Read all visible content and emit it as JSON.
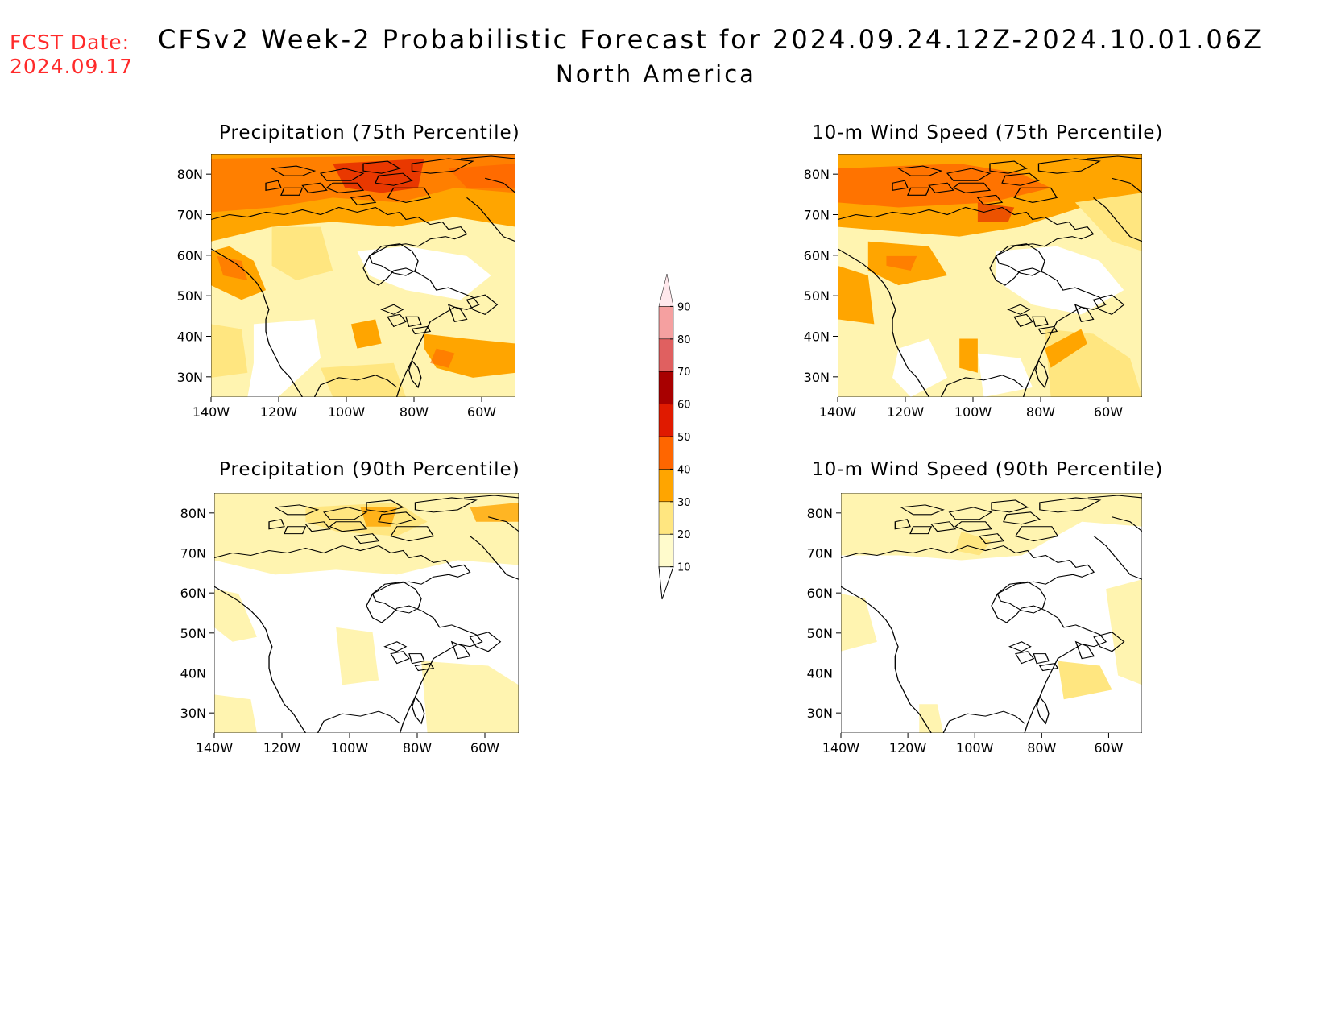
{
  "header": {
    "fcst_label": "FCST Date:",
    "fcst_date": "2024.09.17",
    "title": "CFSv2 Week-2 Probabilistic Forecast for 2024.09.24.12Z-2024.10.01.06Z",
    "subtitle": "North America"
  },
  "panels": [
    {
      "id": "precip75",
      "title": "Precipitation (75th Percentile)"
    },
    {
      "id": "wind75",
      "title": "10-m Wind Speed (75th Percentile)"
    },
    {
      "id": "precip90",
      "title": "Precipitation (90th Percentile)"
    },
    {
      "id": "wind90",
      "title": "10-m Wind Speed (90th Percentile)"
    }
  ],
  "axes": {
    "lat_ticks": [
      "80N",
      "70N",
      "60N",
      "50N",
      "40N",
      "30N"
    ],
    "lon_ticks": [
      "140W",
      "120W",
      "100W",
      "80W",
      "60W"
    ],
    "lat_range": [
      25,
      85
    ],
    "lon_range": [
      -140,
      -50
    ]
  },
  "colorbar": {
    "levels": [
      "10",
      "20",
      "30",
      "40",
      "50",
      "60",
      "70",
      "80",
      "90"
    ],
    "colors": [
      "#fffbcc",
      "#ffe680",
      "#ffa500",
      "#ff6600",
      "#e01a00",
      "#a80000",
      "#e06060",
      "#f5a0a0",
      "#ffe8ec"
    ]
  }
}
